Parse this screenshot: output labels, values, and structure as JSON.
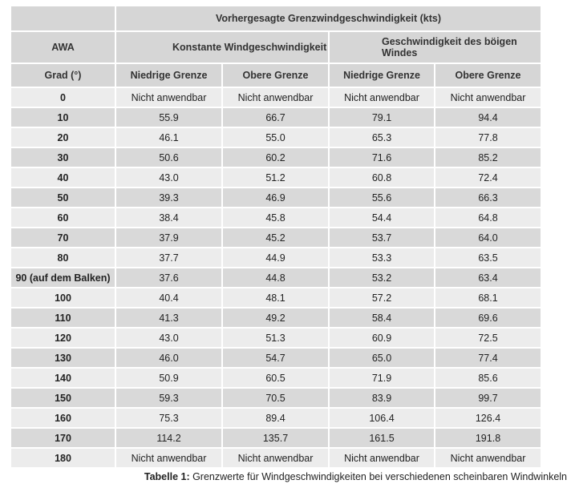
{
  "header": {
    "main": "Vorhergesagte Grenzwindgeschwindigkeit (kts)",
    "awa": "AWA",
    "group1": "Konstante Windgeschwindigkeit",
    "group2": "Geschwindigkeit des böigen Windes",
    "grad": "Grad (°)",
    "low": "Niedrige Grenze",
    "high": "Obere Grenze"
  },
  "rows": [
    [
      "0",
      "Nicht anwendbar",
      "Nicht anwendbar",
      "Nicht anwendbar",
      "Nicht anwendbar"
    ],
    [
      "10",
      "55.9",
      "66.7",
      "79.1",
      "94.4"
    ],
    [
      "20",
      "46.1",
      "55.0",
      "65.3",
      "77.8"
    ],
    [
      "30",
      "50.6",
      "60.2",
      "71.6",
      "85.2"
    ],
    [
      "40",
      "43.0",
      "51.2",
      "60.8",
      "72.4"
    ],
    [
      "50",
      "39.3",
      "46.9",
      "55.6",
      "66.3"
    ],
    [
      "60",
      "38.4",
      "45.8",
      "54.4",
      "64.8"
    ],
    [
      "70",
      "37.9",
      "45.2",
      "53.7",
      "64.0"
    ],
    [
      "80",
      "37.7",
      "44.9",
      "53.3",
      "63.5"
    ],
    [
      "90 (auf dem Balken)",
      "37.6",
      "44.8",
      "53.2",
      "63.4"
    ],
    [
      "100",
      "40.4",
      "48.1",
      "57.2",
      "68.1"
    ],
    [
      "110",
      "41.3",
      "49.2",
      "58.4",
      "69.6"
    ],
    [
      "120",
      "43.0",
      "51.3",
      "60.9",
      "72.5"
    ],
    [
      "130",
      "46.0",
      "54.7",
      "65.0",
      "77.4"
    ],
    [
      "140",
      "50.9",
      "60.5",
      "71.9",
      "85.6"
    ],
    [
      "150",
      "59.3",
      "70.5",
      "83.9",
      "99.7"
    ],
    [
      "160",
      "75.3",
      "89.4",
      "106.4",
      "126.4"
    ],
    [
      "170",
      "114.2",
      "135.7",
      "161.5",
      "191.8"
    ],
    [
      "180",
      "Nicht anwendbar",
      "Nicht anwendbar",
      "Nicht anwendbar",
      "Nicht anwendbar"
    ]
  ],
  "caption": {
    "label": "Tabelle 1:",
    "text": " Grenzwerte für Windgeschwindigkeiten bei verschiedenen scheinbaren Windwinkeln"
  }
}
